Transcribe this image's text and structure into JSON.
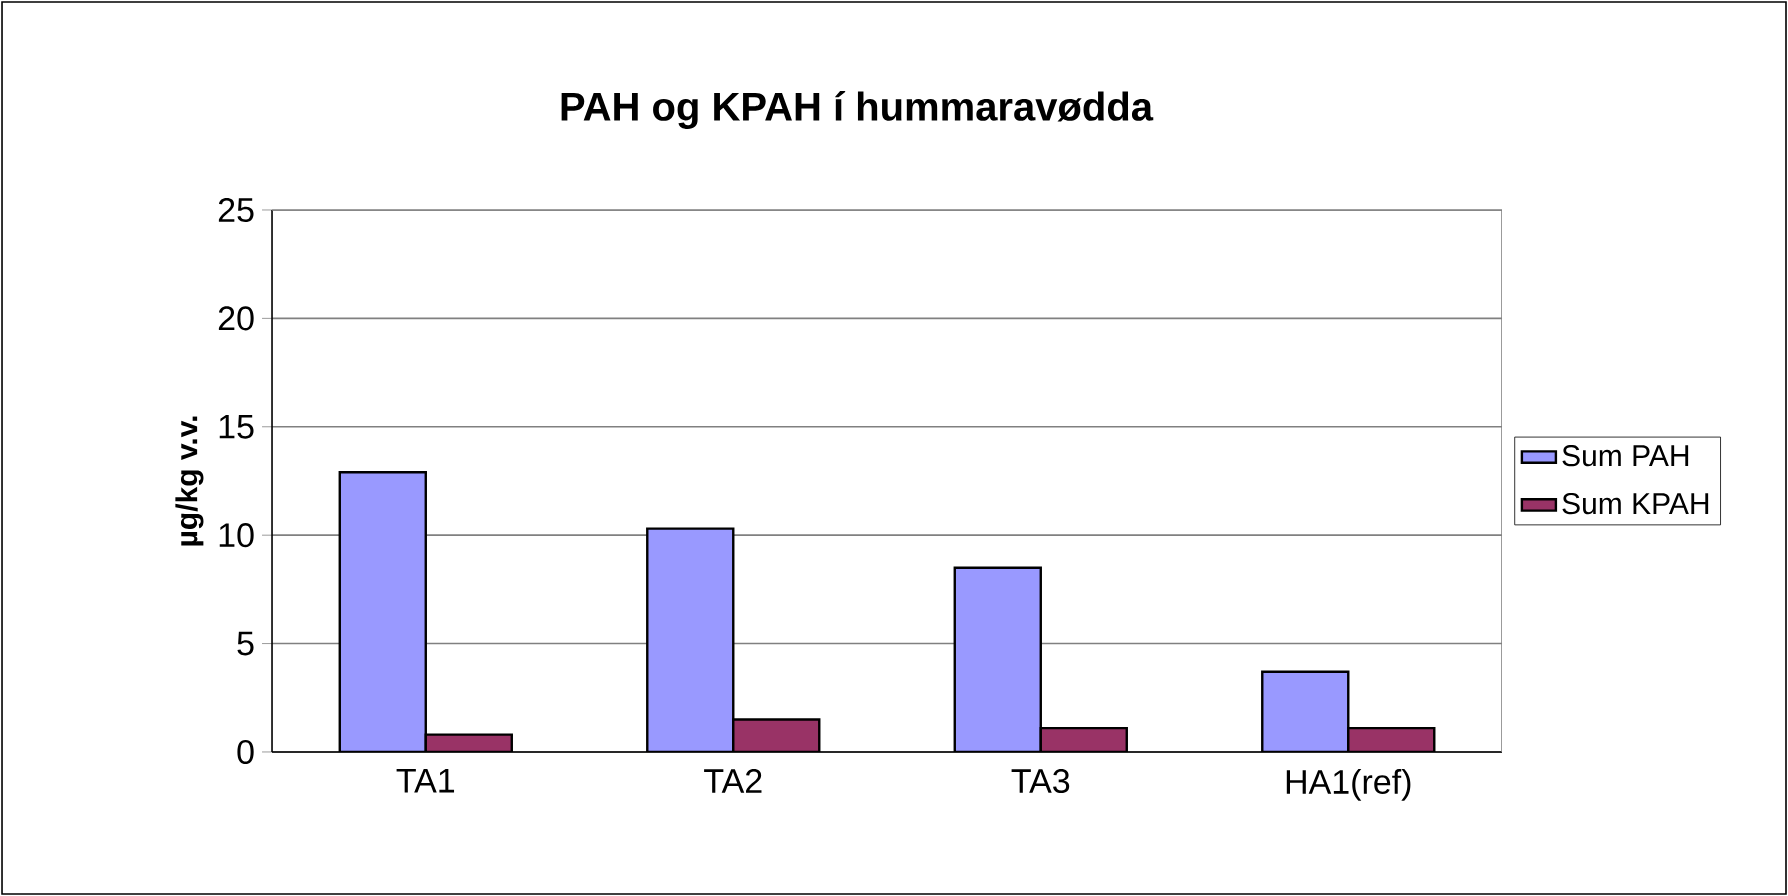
{
  "chart_data": {
    "type": "bar",
    "title": "PAH og KPAH í hummaravødda",
    "ylabel": "µg/kg v.v.",
    "categories": [
      "TA1",
      "TA2",
      "TA3",
      "HA1(ref)"
    ],
    "series": [
      {
        "name": "Sum PAH",
        "color": "#9999ff",
        "values": [
          12.9,
          10.3,
          8.5,
          3.7
        ]
      },
      {
        "name": "Sum KPAH",
        "color": "#993366",
        "values": [
          0.8,
          1.5,
          1.1,
          1.1
        ]
      }
    ],
    "ylim": [
      0,
      25
    ],
    "yticks": [
      0,
      5,
      10,
      15,
      20,
      25
    ],
    "grid": "y",
    "legend": "right"
  }
}
